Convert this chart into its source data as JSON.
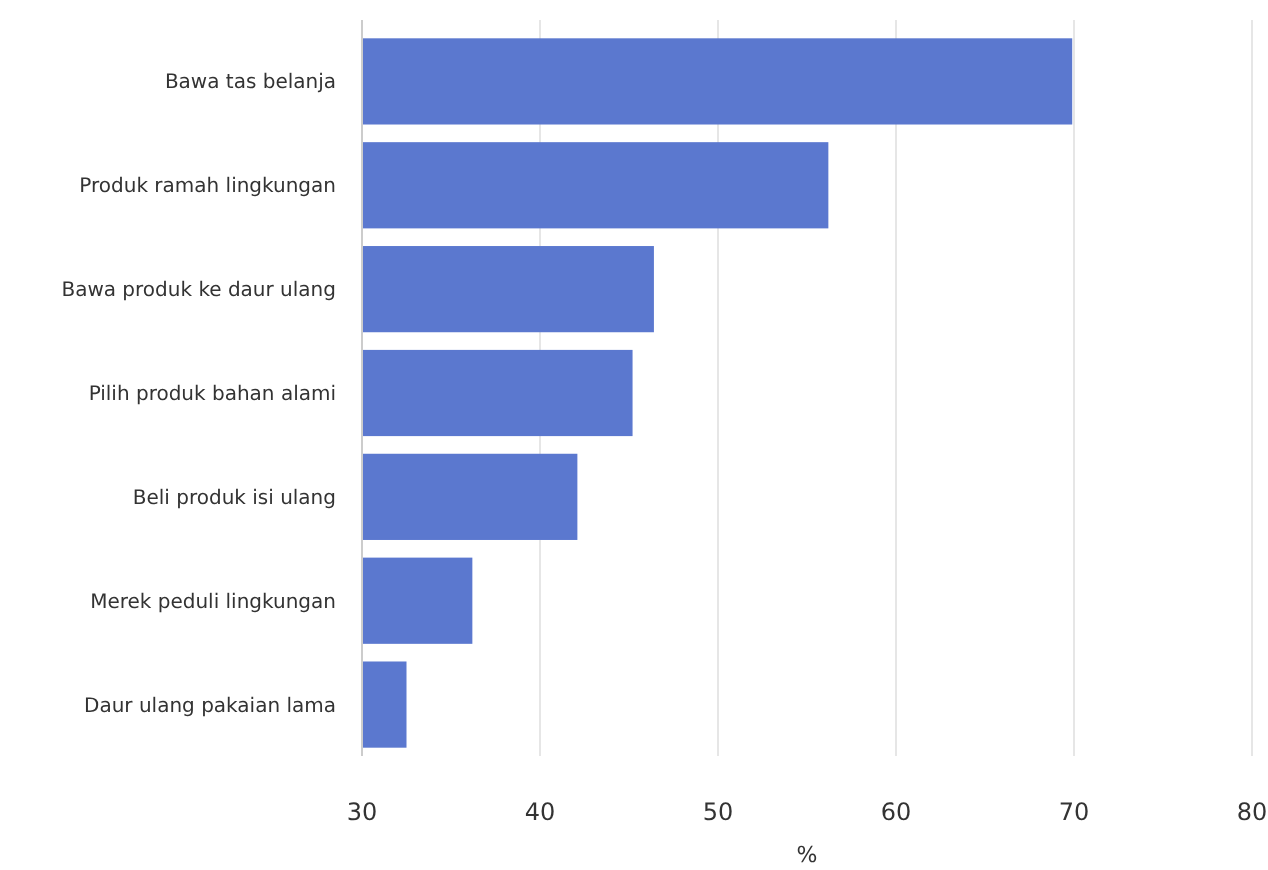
{
  "chart_data": {
    "type": "bar",
    "orientation": "horizontal",
    "xlabel": "%",
    "categories": [
      "Bawa tas belanja",
      "Produk ramah lingkungan",
      "Bawa produk ke daur ulang",
      "Pilih produk bahan alami",
      "Beli produk isi ulang",
      "Merek peduli lingkungan",
      "Daur ulang pakaian lama"
    ],
    "values": [
      69.9,
      56.2,
      46.4,
      45.2,
      42.1,
      36.2,
      32.5
    ],
    "color": "#5b78cf",
    "xlim": [
      30,
      80
    ],
    "xticks": [
      30,
      40,
      50,
      60,
      70,
      80
    ],
    "grid": "x"
  }
}
